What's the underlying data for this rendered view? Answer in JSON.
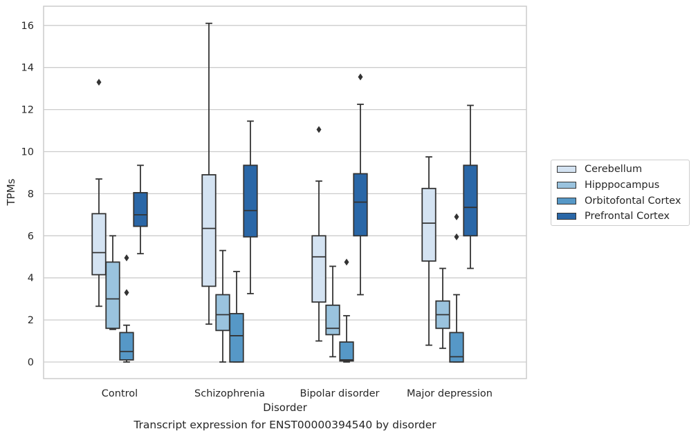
{
  "chart_data": {
    "type": "box",
    "title": "",
    "xlabel": "Disorder",
    "ylabel": "TPMs",
    "caption": "Transcript expression for ENST00000394540 by disorder",
    "ylim": [
      -0.8,
      16.9
    ],
    "yticks": [
      0,
      2,
      4,
      6,
      8,
      10,
      12,
      14,
      16
    ],
    "grid": true,
    "legend_position": "right",
    "categories": [
      "Control",
      "Schizophrenia",
      "Bipolar disorder",
      "Major depression"
    ],
    "series": [
      {
        "name": "Cerebellum",
        "color": "#d4e3f2",
        "boxes": [
          {
            "whislo": 2.65,
            "q1": 4.15,
            "med": 5.2,
            "q3": 7.05,
            "whishi": 8.7,
            "fliers": [
              13.3
            ]
          },
          {
            "whislo": 1.8,
            "q1": 3.6,
            "med": 6.35,
            "q3": 8.9,
            "whishi": 16.1,
            "fliers": []
          },
          {
            "whislo": 1.0,
            "q1": 2.85,
            "med": 5.0,
            "q3": 6.0,
            "whishi": 8.6,
            "fliers": [
              11.05
            ]
          },
          {
            "whislo": 0.8,
            "q1": 4.8,
            "med": 6.6,
            "q3": 8.25,
            "whishi": 9.75,
            "fliers": []
          }
        ]
      },
      {
        "name": "Hipppocampus",
        "color": "#9ac3de",
        "boxes": [
          {
            "whislo": 1.55,
            "q1": 1.6,
            "med": 3.0,
            "q3": 4.75,
            "whishi": 6.0,
            "fliers": []
          },
          {
            "whislo": 0.0,
            "q1": 1.5,
            "med": 2.25,
            "q3": 3.2,
            "whishi": 5.3,
            "fliers": []
          },
          {
            "whislo": 0.25,
            "q1": 1.3,
            "med": 1.6,
            "q3": 2.7,
            "whishi": 4.55,
            "fliers": []
          },
          {
            "whislo": 0.65,
            "q1": 1.6,
            "med": 2.25,
            "q3": 2.9,
            "whishi": 4.45,
            "fliers": []
          }
        ]
      },
      {
        "name": "Orbitofontal Cortex",
        "color": "#5698c7",
        "boxes": [
          {
            "whislo": 0.0,
            "q1": 0.1,
            "med": 0.5,
            "q3": 1.4,
            "whishi": 1.75,
            "fliers": [
              3.3,
              4.95
            ]
          },
          {
            "whislo": 0.0,
            "q1": 0.0,
            "med": 1.25,
            "q3": 2.3,
            "whishi": 4.3,
            "fliers": []
          },
          {
            "whislo": 0.0,
            "q1": 0.05,
            "med": 0.1,
            "q3": 0.95,
            "whishi": 2.2,
            "fliers": [
              4.75
            ]
          },
          {
            "whislo": 0.0,
            "q1": 0.0,
            "med": 0.25,
            "q3": 1.4,
            "whishi": 3.2,
            "fliers": [
              5.95,
              6.9
            ]
          }
        ]
      },
      {
        "name": "Prefrontal Cortex",
        "color": "#2a67a7",
        "boxes": [
          {
            "whislo": 5.15,
            "q1": 6.45,
            "med": 7.0,
            "q3": 8.05,
            "whishi": 9.35,
            "fliers": []
          },
          {
            "whislo": 3.25,
            "q1": 5.95,
            "med": 7.2,
            "q3": 9.35,
            "whishi": 11.45,
            "fliers": []
          },
          {
            "whislo": 3.2,
            "q1": 6.0,
            "med": 7.6,
            "q3": 8.95,
            "whishi": 12.25,
            "fliers": [
              13.55
            ]
          },
          {
            "whislo": 4.45,
            "q1": 6.0,
            "med": 7.35,
            "q3": 9.35,
            "whishi": 12.2,
            "fliers": []
          }
        ]
      }
    ]
  }
}
